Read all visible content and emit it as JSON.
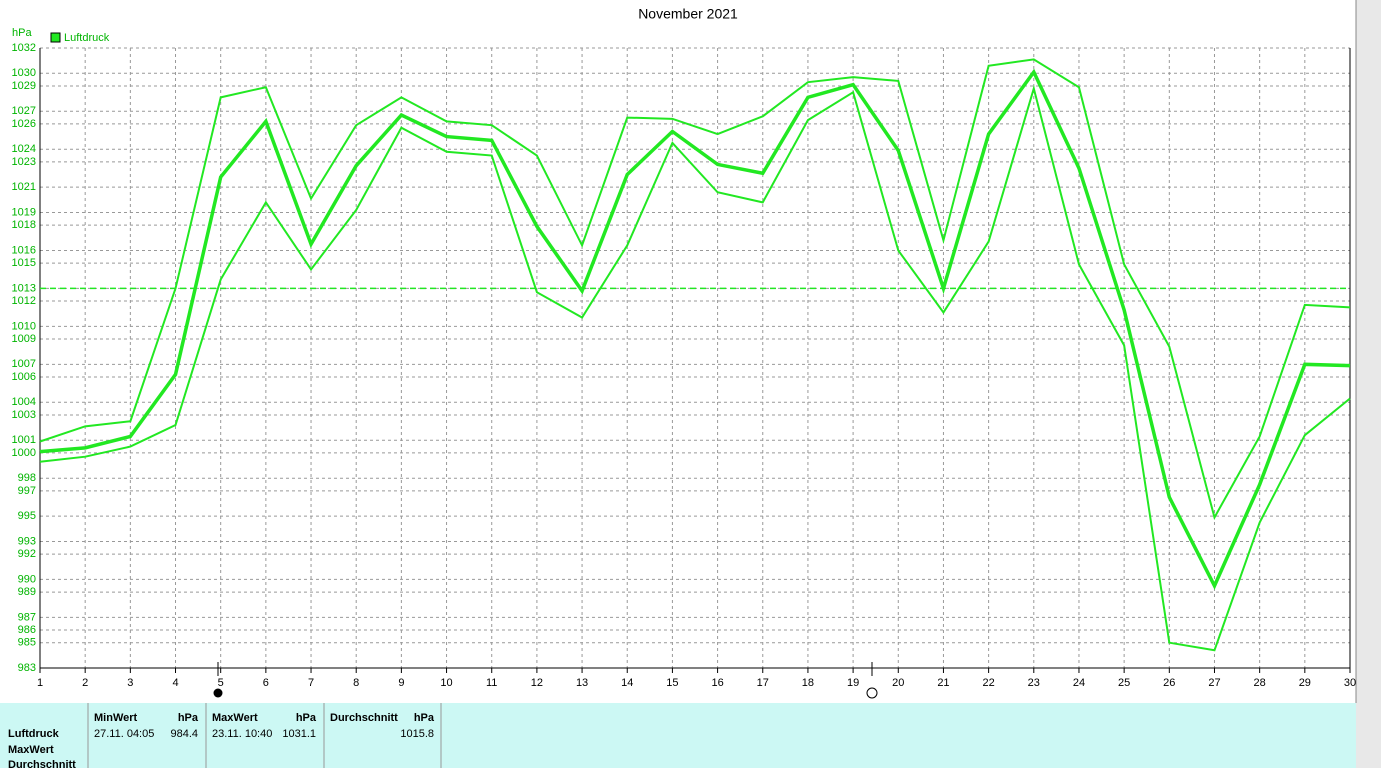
{
  "chart_data": {
    "type": "line",
    "title": "November 2021",
    "y_label": "hPa",
    "x": [
      1,
      2,
      3,
      4,
      5,
      6,
      7,
      8,
      9,
      10,
      11,
      12,
      13,
      14,
      15,
      16,
      17,
      18,
      19,
      20,
      21,
      22,
      23,
      24,
      25,
      26,
      27,
      28,
      29,
      30
    ],
    "xlim": [
      1,
      30
    ],
    "ylim": [
      983,
      1032
    ],
    "yticks": [
      1032,
      1030,
      1029,
      1027,
      1026,
      1024,
      1023,
      1021,
      1019,
      1018,
      1016,
      1015,
      1013,
      1012,
      1010,
      1009,
      1007,
      1006,
      1004,
      1003,
      1001,
      1000,
      998,
      997,
      995,
      993,
      992,
      990,
      989,
      987,
      986,
      985,
      983
    ],
    "grid": true,
    "reference_line": 1013,
    "series": [
      {
        "name": "Luftdruck",
        "color": "#22e822",
        "values": [
          1000.1,
          1000.4,
          1001.3,
          1006.2,
          1021.8,
          1026.2,
          1016.5,
          1022.7,
          1026.7,
          1025.0,
          1024.7,
          1017.9,
          1012.8,
          1022.0,
          1025.4,
          1022.8,
          1022.1,
          1028.1,
          1029.1,
          1023.9,
          1013.0,
          1025.2,
          1030.1,
          1022.5,
          1011.3,
          996.5,
          989.5,
          997.5,
          1007.0,
          1006.9
        ]
      },
      {
        "color": "#22e822",
        "values": [
          1000.9,
          1002.1,
          1002.5,
          1013.0,
          1028.1,
          1028.9,
          1020.1,
          1025.9,
          1028.1,
          1026.2,
          1025.9,
          1023.5,
          1016.4,
          1026.5,
          1026.4,
          1025.2,
          1026.6,
          1029.3,
          1029.7,
          1029.4,
          1016.8,
          1030.6,
          1031.1,
          1028.9,
          1014.9,
          1008.4,
          994.9,
          1001.3,
          1011.7,
          1011.5
        ]
      },
      {
        "color": "#22e822",
        "values": [
          999.3,
          999.7,
          1000.5,
          1002.2,
          1013.7,
          1019.8,
          1014.5,
          1019.2,
          1025.7,
          1023.8,
          1023.5,
          1012.7,
          1010.7,
          1016.4,
          1024.5,
          1020.6,
          1019.8,
          1026.3,
          1028.5,
          1016.0,
          1011.1,
          1016.7,
          1028.8,
          1014.9,
          1008.5,
          985.0,
          984.4,
          994.5,
          1001.4,
          1004.3
        ]
      }
    ]
  },
  "table": {
    "row_labels": [
      "Luftdruck",
      "MaxWert",
      "Durchschnitt"
    ],
    "groups": [
      {
        "header": "MinWert",
        "unit": "hPa",
        "time": "27.11.  04:05",
        "value": "984.4"
      },
      {
        "header": "MaxWert",
        "unit": "hPa",
        "time": "23.11.  10:40",
        "value": "1031.1"
      },
      {
        "header": "Durchschnitt",
        "unit": "hPa",
        "value": "1015.8"
      }
    ]
  }
}
